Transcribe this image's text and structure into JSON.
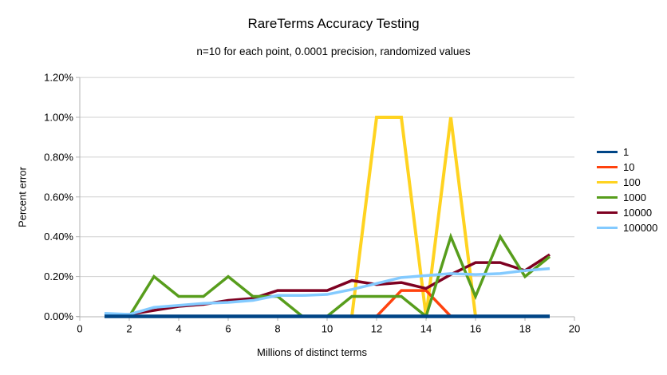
{
  "title": "RareTerms Accuracy Testing",
  "subtitle": "n=10 for each point, 0.0001 precision, randomized values",
  "chart_data": {
    "type": "line",
    "title": "RareTerms Accuracy Testing",
    "subtitle": "n=10 for each point, 0.0001 precision, randomized values",
    "xlabel": "Millions of distinct terms",
    "ylabel": "Percent error",
    "xlim": [
      0,
      20
    ],
    "ylim_percent": [
      0.0,
      1.2
    ],
    "grid": true,
    "legend_position": "right",
    "xticks": [
      0,
      2,
      4,
      6,
      8,
      10,
      12,
      14,
      16,
      18,
      20
    ],
    "yticks": [
      {
        "value": 0.0,
        "label": "0.00%"
      },
      {
        "value": 0.2,
        "label": "0.20%"
      },
      {
        "value": 0.4,
        "label": "0.40%"
      },
      {
        "value": 0.6,
        "label": "0.60%"
      },
      {
        "value": 0.8,
        "label": "0.80%"
      },
      {
        "value": 1.0,
        "label": "1.00%"
      },
      {
        "value": 1.2,
        "label": "1.20%"
      }
    ],
    "x": [
      1,
      2,
      3,
      4,
      5,
      6,
      7,
      8,
      9,
      10,
      11,
      12,
      13,
      14,
      15,
      16,
      17,
      18,
      19
    ],
    "series": [
      {
        "name": "1",
        "color": "#004586",
        "stroke_width": 4.5,
        "values": [
          0,
          0,
          0,
          0,
          0,
          0,
          0,
          0,
          0,
          0,
          0,
          0,
          0,
          0,
          0,
          0,
          0,
          0,
          0
        ]
      },
      {
        "name": "10",
        "color": "#FF420E",
        "stroke_width": 3.5,
        "values": [
          0,
          0,
          0,
          0,
          0,
          0,
          0,
          0,
          0,
          0,
          0,
          0,
          0.13,
          0.13,
          0,
          0,
          0,
          0,
          0
        ]
      },
      {
        "name": "100",
        "color": "#FFD320",
        "stroke_width": 4,
        "values": [
          0,
          0,
          0,
          0,
          0,
          0,
          0,
          0,
          0,
          0,
          0,
          1.0,
          1.0,
          0,
          1.0,
          0,
          0,
          0,
          0
        ]
      },
      {
        "name": "1000",
        "color": "#579D1C",
        "stroke_width": 3.5,
        "values": [
          0,
          0,
          0.2,
          0.1,
          0.1,
          0.2,
          0.1,
          0.1,
          0,
          0,
          0.1,
          0.1,
          0.1,
          0,
          0.4,
          0.1,
          0.4,
          0.2,
          0.3
        ]
      },
      {
        "name": "10000",
        "color": "#7E0021",
        "stroke_width": 3.5,
        "values": [
          0.005,
          0.01,
          0.03,
          0.05,
          0.06,
          0.08,
          0.09,
          0.13,
          0.13,
          0.13,
          0.18,
          0.16,
          0.17,
          0.14,
          0.21,
          0.27,
          0.27,
          0.23,
          0.31
        ]
      },
      {
        "name": "100000",
        "color": "#83CAFF",
        "stroke_width": 3.5,
        "values": [
          0.015,
          0.01,
          0.045,
          0.055,
          0.065,
          0.07,
          0.08,
          0.105,
          0.105,
          0.11,
          0.135,
          0.165,
          0.195,
          0.205,
          0.215,
          0.21,
          0.215,
          0.23,
          0.24
        ]
      }
    ],
    "draw_order": [
      "100",
      "10",
      "10000",
      "1000",
      "100000",
      "1"
    ],
    "legend_items": [
      "1",
      "10",
      "100",
      "1000",
      "10000",
      "100000"
    ]
  },
  "colors": {
    "background": "#ffffff",
    "gridline": "#d0d0d0",
    "axis": "#b3b3b3",
    "text": "#000000"
  }
}
